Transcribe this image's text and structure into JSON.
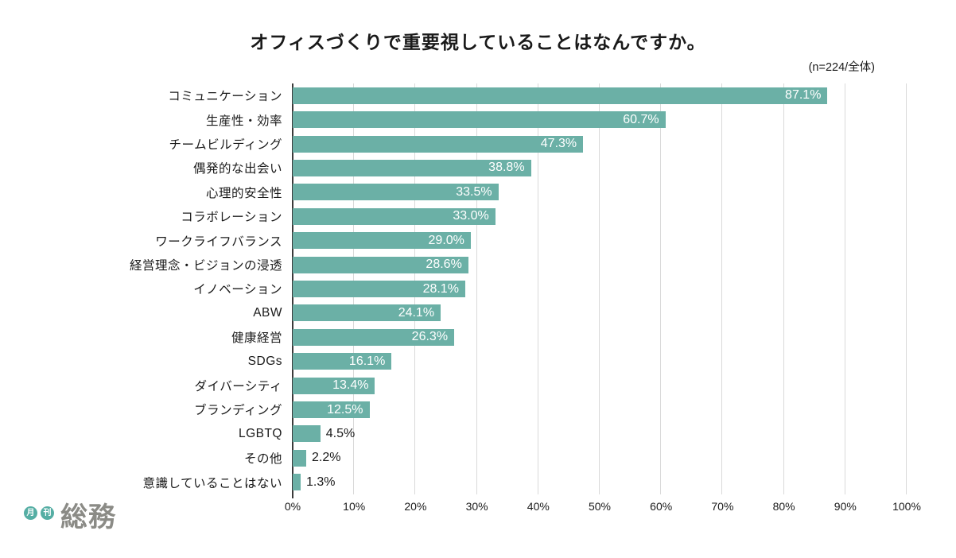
{
  "page": {
    "title": "オフィスづくりで重要視していることはなんですか。",
    "sample_label": "(n=224/全体)"
  },
  "logo": {
    "circle1": "月",
    "circle2": "刊",
    "wordmark": "総務",
    "circle_color": "#55aea4",
    "wordmark_color": "#8b8b86"
  },
  "chart_data": {
    "type": "bar",
    "orientation": "horizontal",
    "title": "オフィスづくりで重要視していることはなんですか。",
    "subtitle": "(n=224/全体)",
    "categories": [
      "コミュニケーション",
      "生産性・効率",
      "チームビルディング",
      "偶発的な出会い",
      "心理的安全性",
      "コラボレーション",
      "ワークライフバランス",
      "経営理念・ビジョンの浸透",
      "イノベーション",
      "ABW",
      "健康経営",
      "SDGs",
      "ダイバーシティ",
      "ブランディング",
      "LGBTQ",
      "その他",
      "意識していることはない"
    ],
    "values": [
      87.1,
      60.7,
      47.3,
      38.8,
      33.5,
      33.0,
      29.0,
      28.6,
      28.1,
      24.1,
      26.3,
      16.1,
      13.4,
      12.5,
      4.5,
      2.2,
      1.3
    ],
    "value_suffix": "%",
    "xlim": [
      0,
      100
    ],
    "xticks": [
      "0%",
      "10%",
      "20%",
      "30%",
      "40%",
      "50%",
      "60%",
      "70%",
      "80%",
      "90%",
      "100%"
    ],
    "grid": "vertical",
    "legend": "none",
    "bar_color": "#6bb0a6",
    "value_label_inside_color": "#ffffff",
    "value_label_outside_color": "#1a1a1a",
    "gridline_color": "#d9d9d9",
    "axis_line_color": "#3a3a3a"
  }
}
